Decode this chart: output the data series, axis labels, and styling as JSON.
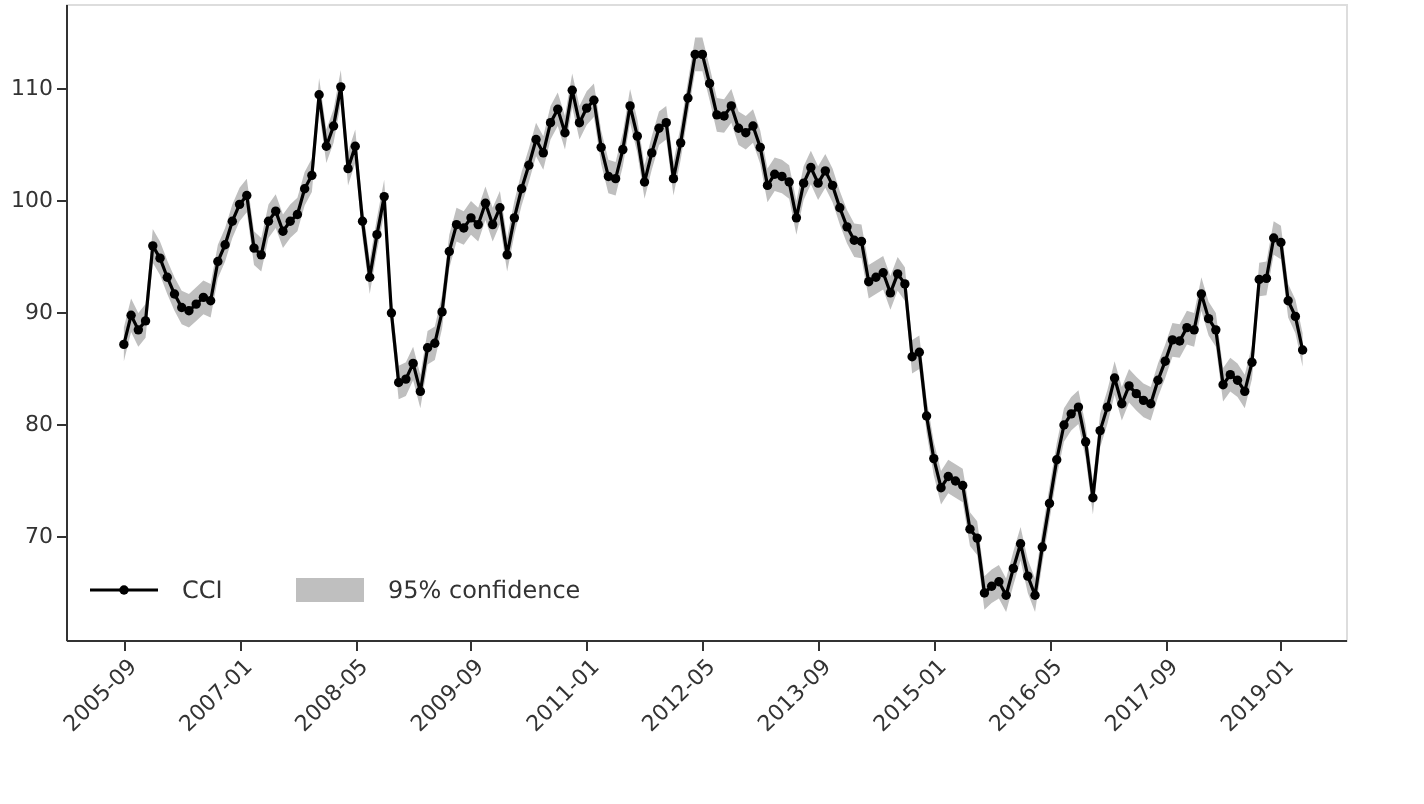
{
  "chart_data": {
    "type": "line",
    "legend": "bottom left",
    "marker": "circle",
    "line_style": "solid",
    "grid": false,
    "x": [
      "2005-09",
      "2005-10",
      "2005-11",
      "2005-12",
      "2006-01",
      "2006-02",
      "2006-03",
      "2006-04",
      "2006-05",
      "2006-06",
      "2006-07",
      "2006-08",
      "2006-09",
      "2006-10",
      "2006-11",
      "2006-12",
      "2007-01",
      "2007-02",
      "2007-03",
      "2007-04",
      "2007-05",
      "2007-06",
      "2007-07",
      "2007-08",
      "2007-09",
      "2007-10",
      "2007-11",
      "2007-12",
      "2008-01",
      "2008-02",
      "2008-03",
      "2008-04",
      "2008-05",
      "2008-06",
      "2008-07",
      "2008-08",
      "2008-09",
      "2008-10",
      "2008-11",
      "2008-12",
      "2009-01",
      "2009-02",
      "2009-03",
      "2009-04",
      "2009-05",
      "2009-06",
      "2009-07",
      "2009-08",
      "2009-09",
      "2009-10",
      "2009-11",
      "2009-12",
      "2010-01",
      "2010-02",
      "2010-03",
      "2010-04",
      "2010-05",
      "2010-06",
      "2010-07",
      "2010-08",
      "2010-09",
      "2010-10",
      "2010-11",
      "2010-12",
      "2011-01",
      "2011-02",
      "2011-03",
      "2011-04",
      "2011-05",
      "2011-06",
      "2011-07",
      "2011-08",
      "2011-09",
      "2011-10",
      "2011-11",
      "2011-12",
      "2012-01",
      "2012-02",
      "2012-03",
      "2012-04",
      "2012-05",
      "2012-06",
      "2012-07",
      "2012-08",
      "2012-09",
      "2012-10",
      "2012-11",
      "2012-12",
      "2013-01",
      "2013-02",
      "2013-03",
      "2013-04",
      "2013-05",
      "2013-06",
      "2013-07",
      "2013-08",
      "2013-09",
      "2013-10",
      "2013-11",
      "2013-12",
      "2014-01",
      "2014-02",
      "2014-03",
      "2014-04",
      "2014-05",
      "2014-06",
      "2014-07",
      "2014-08",
      "2014-09",
      "2014-10",
      "2014-11",
      "2014-12",
      "2015-01",
      "2015-02",
      "2015-03",
      "2015-04",
      "2015-05",
      "2015-06",
      "2015-07",
      "2015-08",
      "2015-09",
      "2015-10",
      "2015-11",
      "2015-12",
      "2016-01",
      "2016-02",
      "2016-03",
      "2016-04",
      "2016-05",
      "2016-06",
      "2016-07",
      "2016-08",
      "2016-09",
      "2016-10",
      "2016-11",
      "2016-12",
      "2017-01",
      "2017-02",
      "2017-03",
      "2017-04",
      "2017-05",
      "2017-06",
      "2017-07",
      "2017-08",
      "2017-09",
      "2017-10",
      "2017-11",
      "2017-12",
      "2018-01",
      "2018-02",
      "2018-03",
      "2018-04",
      "2018-05",
      "2018-06",
      "2018-07",
      "2018-08",
      "2018-09",
      "2018-10",
      "2018-11",
      "2018-12",
      "2019-01",
      "2019-02",
      "2019-03",
      "2019-04"
    ],
    "xlim": [
      "2005-01",
      "2019-10"
    ],
    "xticks": [
      "2005-09",
      "2007-01",
      "2008-05",
      "2009-09",
      "2011-01",
      "2012-05",
      "2013-09",
      "2015-01",
      "2016-05",
      "2017-09",
      "2019-01"
    ],
    "ylim": [
      60.7,
      117.5
    ],
    "annotations": [
      "95% confidence"
    ],
    "yticks": [
      70,
      80,
      90,
      100,
      110
    ],
    "series": [
      {
        "name": "CCI",
        "color": "#000000",
        "values": [
          87.1,
          89.7,
          88.4,
          89.2,
          95.9,
          94.8,
          93.1,
          91.6,
          90.4,
          90.1,
          90.7,
          91.3,
          91.0,
          94.5,
          96.0,
          98.1,
          99.6,
          100.4,
          95.7,
          95.1,
          98.1,
          99.0,
          97.2,
          98.1,
          98.7,
          101.0,
          102.2,
          109.4,
          104.8,
          106.6,
          110.1,
          102.8,
          104.8,
          98.1,
          93.1,
          96.9,
          100.3,
          89.9,
          83.7,
          84.0,
          85.4,
          82.9,
          86.8,
          87.2,
          90.0,
          95.4,
          97.8,
          97.5,
          98.4,
          97.8,
          99.7,
          97.8,
          99.3,
          95.1,
          98.4,
          101.0,
          103.1,
          105.4,
          104.2,
          106.9,
          108.1,
          106.0,
          109.8,
          106.9,
          108.2,
          108.9,
          104.7,
          102.1,
          101.9,
          104.5,
          108.4,
          105.7,
          101.6,
          104.2,
          106.4,
          106.9,
          101.9,
          105.1,
          109.1,
          113.0,
          113.0,
          110.4,
          107.6,
          107.5,
          108.4,
          106.4,
          106.0,
          106.6,
          104.7,
          101.3,
          102.3,
          102.1,
          101.6,
          98.4,
          101.5,
          102.9,
          101.5,
          102.6,
          101.3,
          99.3,
          97.6,
          96.4,
          96.3,
          92.7,
          93.1,
          93.5,
          91.7,
          93.4,
          92.5,
          86.0,
          86.4,
          80.7,
          76.9,
          74.3,
          75.3,
          74.9,
          74.5,
          70.6,
          69.8,
          64.9,
          65.5,
          65.9,
          64.7,
          67.1,
          69.3,
          66.4,
          64.7,
          69.0,
          72.9,
          76.8,
          79.9,
          80.9,
          81.5,
          78.4,
          73.4,
          79.4,
          81.5,
          84.1,
          81.8,
          83.4,
          82.7,
          82.1,
          81.8,
          83.9,
          85.6,
          87.5,
          87.4,
          88.6,
          88.4,
          91.6,
          89.4,
          88.4,
          83.5,
          84.4,
          83.9,
          82.9,
          85.5,
          92.9,
          93.0,
          96.6,
          96.2,
          91.0,
          89.6,
          86.6
        ],
        "lower": [
          85.6,
          88.2,
          86.9,
          87.7,
          94.4,
          93.3,
          91.6,
          90.1,
          88.9,
          88.6,
          89.2,
          89.8,
          89.5,
          93.0,
          94.5,
          96.6,
          98.1,
          98.9,
          94.2,
          93.6,
          96.6,
          97.5,
          95.7,
          96.6,
          97.2,
          99.5,
          100.7,
          107.9,
          103.3,
          105.1,
          108.6,
          101.3,
          103.3,
          96.6,
          91.6,
          95.4,
          98.8,
          88.4,
          82.2,
          82.5,
          83.9,
          81.4,
          85.3,
          85.7,
          88.5,
          93.9,
          96.3,
          96.0,
          96.9,
          96.3,
          98.2,
          96.3,
          97.8,
          93.6,
          96.9,
          99.5,
          101.6,
          103.9,
          102.7,
          105.4,
          106.6,
          104.5,
          108.3,
          105.4,
          106.7,
          107.4,
          103.2,
          100.6,
          100.4,
          103.0,
          106.9,
          104.2,
          100.1,
          102.7,
          104.9,
          105.4,
          100.4,
          103.6,
          107.6,
          111.5,
          111.5,
          108.9,
          106.1,
          106.0,
          106.9,
          104.9,
          104.5,
          105.1,
          103.2,
          99.8,
          100.8,
          100.6,
          100.1,
          96.9,
          100.0,
          101.4,
          100.0,
          101.1,
          99.8,
          97.8,
          96.1,
          94.9,
          94.8,
          91.2,
          91.6,
          92.0,
          90.2,
          91.9,
          91.0,
          84.5,
          84.9,
          79.2,
          75.4,
          72.8,
          73.8,
          73.4,
          73.0,
          69.1,
          68.3,
          63.4,
          64.0,
          64.4,
          63.2,
          65.6,
          67.8,
          64.9,
          63.2,
          67.5,
          71.4,
          75.3,
          78.4,
          79.4,
          80.0,
          76.9,
          71.9,
          77.9,
          80.0,
          82.6,
          80.3,
          81.9,
          81.2,
          80.6,
          80.3,
          82.4,
          84.1,
          86.0,
          85.9,
          87.1,
          86.9,
          90.1,
          87.9,
          86.9,
          82.0,
          82.9,
          82.4,
          81.4,
          84.0,
          91.4,
          91.5,
          95.1,
          94.7,
          89.5,
          88.1,
          85.1
        ],
        "upper": [
          88.6,
          91.2,
          89.9,
          90.7,
          97.4,
          96.3,
          94.6,
          93.1,
          91.9,
          91.6,
          92.2,
          92.8,
          92.5,
          96.0,
          97.5,
          99.6,
          101.1,
          101.9,
          97.2,
          96.6,
          99.6,
          100.5,
          98.7,
          99.6,
          100.2,
          102.5,
          103.7,
          110.9,
          106.3,
          108.1,
          111.6,
          104.3,
          106.3,
          99.6,
          94.6,
          98.4,
          101.8,
          91.4,
          85.2,
          85.5,
          86.9,
          84.4,
          88.3,
          88.7,
          91.5,
          96.9,
          99.3,
          99.0,
          99.9,
          99.3,
          101.2,
          99.3,
          100.8,
          96.6,
          99.9,
          102.5,
          104.6,
          106.9,
          105.7,
          108.4,
          109.6,
          107.5,
          111.3,
          108.4,
          109.7,
          110.4,
          106.2,
          103.6,
          103.4,
          106.0,
          109.9,
          107.2,
          103.1,
          105.7,
          107.9,
          108.4,
          103.4,
          106.6,
          110.6,
          114.5,
          114.5,
          111.9,
          109.1,
          109.0,
          109.9,
          107.9,
          107.5,
          108.1,
          106.2,
          102.8,
          103.8,
          103.6,
          103.1,
          99.9,
          103.0,
          104.4,
          103.0,
          104.1,
          102.8,
          100.8,
          99.1,
          97.9,
          97.8,
          94.2,
          94.6,
          95.0,
          93.2,
          94.9,
          94.0,
          87.5,
          87.9,
          82.2,
          78.4,
          75.8,
          76.8,
          76.4,
          76.0,
          72.1,
          71.3,
          66.4,
          67.0,
          67.4,
          66.2,
          68.6,
          70.8,
          67.9,
          66.2,
          70.5,
          74.4,
          78.3,
          81.4,
          82.4,
          83.0,
          79.9,
          74.9,
          80.9,
          83.0,
          85.6,
          83.3,
          84.9,
          84.2,
          83.6,
          83.3,
          85.4,
          87.1,
          89.0,
          88.9,
          90.1,
          89.9,
          93.1,
          90.9,
          89.9,
          85.0,
          85.9,
          85.4,
          84.4,
          87.0,
          94.4,
          94.5,
          98.1,
          97.7,
          92.5,
          91.1,
          88.1
        ]
      }
    ]
  }
}
